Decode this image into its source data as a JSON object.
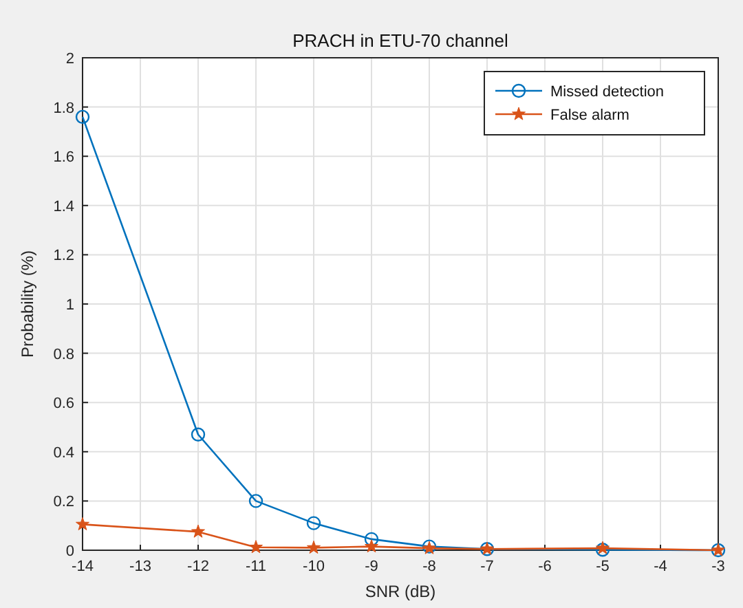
{
  "chart_data": {
    "type": "line",
    "title": "PRACH in ETU-70 channel",
    "xlabel": "SNR (dB)",
    "ylabel": "Probability (%)",
    "x": [
      -14,
      -12,
      -11,
      -10,
      -9,
      -8,
      -7,
      -5,
      -3
    ],
    "series": [
      {
        "name": "Missed detection",
        "color": "#0072bd",
        "marker": "circle",
        "values": [
          1.76,
          0.47,
          0.2,
          0.11,
          0.045,
          0.015,
          0.005,
          0.002,
          0.0
        ]
      },
      {
        "name": "False alarm",
        "color": "#d95319",
        "marker": "star",
        "values": [
          0.105,
          0.075,
          0.012,
          0.01,
          0.015,
          0.008,
          0.005,
          0.008,
          0.0
        ]
      }
    ],
    "xlim": [
      -14,
      -3
    ],
    "xticks": [
      -14,
      -13,
      -12,
      -11,
      -10,
      -9,
      -8,
      -7,
      -6,
      -5,
      -4,
      -3
    ],
    "ylim": [
      0,
      2
    ],
    "yticks": [
      0,
      0.2,
      0.4,
      0.6,
      0.8,
      1,
      1.2,
      1.4,
      1.6,
      1.8,
      2
    ],
    "grid": true,
    "legend": "top right",
    "line_style": "solid"
  }
}
